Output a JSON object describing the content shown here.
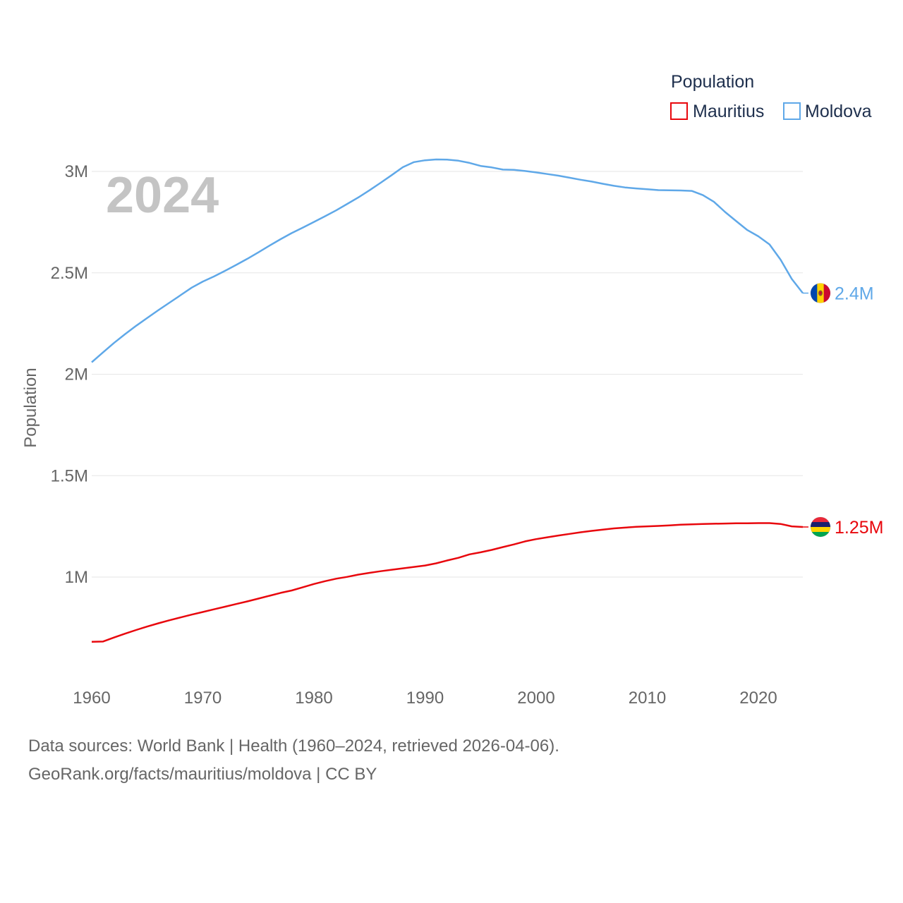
{
  "chart_data": {
    "type": "line",
    "year_label": "2024",
    "ylabel": "Population",
    "legend_title": "Population",
    "x_ticks": [
      1960,
      1970,
      1980,
      1990,
      2000,
      2010,
      2020
    ],
    "y_ticks": [
      1000000,
      1500000,
      2000000,
      2500000,
      3000000
    ],
    "y_tick_labels": [
      "1M",
      "1.5M",
      "2M",
      "2.5M",
      "3M"
    ],
    "xlim": [
      1960,
      2024
    ],
    "ylim": [
      680000,
      3000000
    ],
    "series": [
      {
        "name": "Mauritius",
        "color": "#e8070d",
        "end_label": "1.25M",
        "flag": "mauritius-flag",
        "x": [
          1960,
          1961,
          1962,
          1963,
          1964,
          1965,
          1966,
          1967,
          1968,
          1969,
          1970,
          1971,
          1972,
          1973,
          1974,
          1975,
          1976,
          1977,
          1978,
          1979,
          1980,
          1981,
          1982,
          1983,
          1984,
          1985,
          1986,
          1987,
          1988,
          1989,
          1990,
          1991,
          1992,
          1993,
          1994,
          1995,
          1996,
          1997,
          1998,
          1999,
          2000,
          2001,
          2002,
          2003,
          2004,
          2005,
          2006,
          2007,
          2008,
          2009,
          2010,
          2011,
          2012,
          2013,
          2014,
          2015,
          2016,
          2017,
          2018,
          2019,
          2020,
          2021,
          2022,
          2023,
          2024
        ],
        "values": [
          681000,
          682000,
          702000,
          721000,
          739000,
          756000,
          772000,
          787000,
          801000,
          815000,
          828000,
          841000,
          854000,
          867000,
          880000,
          894000,
          908000,
          922000,
          934000,
          950000,
          966000,
          980000,
          992000,
          1001000,
          1012000,
          1021000,
          1029000,
          1036000,
          1043000,
          1050000,
          1057000,
          1068000,
          1082000,
          1095000,
          1112000,
          1122000,
          1134000,
          1148000,
          1161000,
          1176000,
          1187000,
          1196000,
          1205000,
          1213000,
          1221000,
          1228000,
          1234000,
          1240000,
          1244000,
          1248000,
          1250000,
          1252000,
          1255000,
          1258000,
          1260000,
          1262000,
          1263000,
          1264000,
          1265000,
          1265500,
          1266000,
          1266000,
          1262000,
          1250000,
          1247000
        ]
      },
      {
        "name": "Moldova",
        "color": "#5fa8e8",
        "end_label": "2.4M",
        "flag": "moldova-flag",
        "x": [
          1960,
          1961,
          1962,
          1963,
          1964,
          1965,
          1966,
          1967,
          1968,
          1969,
          1970,
          1971,
          1972,
          1973,
          1974,
          1975,
          1976,
          1977,
          1978,
          1979,
          1980,
          1981,
          1982,
          1983,
          1984,
          1985,
          1986,
          1987,
          1988,
          1989,
          1990,
          1991,
          1992,
          1993,
          1994,
          1995,
          1996,
          1997,
          1998,
          1999,
          2000,
          2001,
          2002,
          2003,
          2004,
          2005,
          2006,
          2007,
          2008,
          2009,
          2010,
          2011,
          2012,
          2013,
          2014,
          2015,
          2016,
          2017,
          2018,
          2019,
          2020,
          2021,
          2022,
          2023,
          2024
        ],
        "values": [
          2059000,
          2107000,
          2154000,
          2198000,
          2239000,
          2278000,
          2316000,
          2353000,
          2390000,
          2427000,
          2457000,
          2482000,
          2510000,
          2539000,
          2569000,
          2601000,
          2634000,
          2666000,
          2696000,
          2723000,
          2751000,
          2779000,
          2808000,
          2840000,
          2872000,
          2907000,
          2944000,
          2982000,
          3021000,
          3046000,
          3055000,
          3059000,
          3058000,
          3053000,
          3042000,
          3027000,
          3020000,
          3009000,
          3008000,
          3002000,
          2995000,
          2987000,
          2979000,
          2969000,
          2959000,
          2950000,
          2939000,
          2929000,
          2921000,
          2916000,
          2912000,
          2908000,
          2907000,
          2906000,
          2904000,
          2883000,
          2850000,
          2800000,
          2755000,
          2711000,
          2680000,
          2640000,
          2565000,
          2470000,
          2400000
        ]
      }
    ]
  },
  "footer": {
    "line1": "Data sources: World Bank | Health (1960–2024, retrieved 2026-04-06).",
    "line2": "GeoRank.org/facts/mauritius/moldova | CC BY"
  }
}
